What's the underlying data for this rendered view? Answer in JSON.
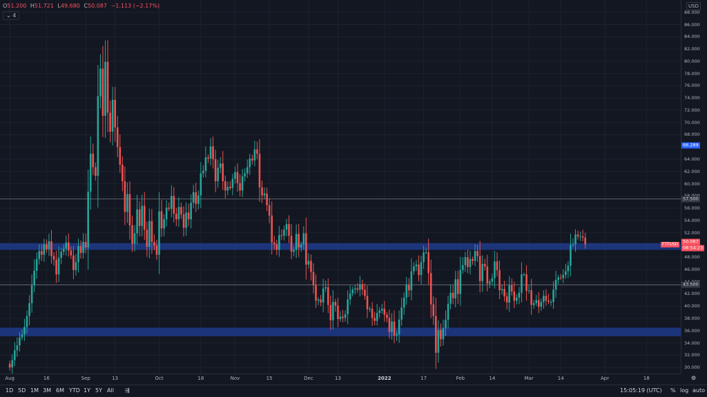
{
  "ohlc": {
    "o_label": "O",
    "o": "51.200",
    "h_label": "H",
    "h": "51.721",
    "l_label": "L",
    "l": "49.680",
    "c_label": "C",
    "c": "50.087",
    "change": "−1.113 (−2.17%)"
  },
  "indicators_toggle": "4",
  "currency": "USD",
  "symbol_label": "FTTUSD",
  "price_badge": {
    "value": "50.087",
    "countdown": "08:54:23",
    "color": "#f7525f"
  },
  "blue_badge": {
    "value": "66.289",
    "color": "#2962ff"
  },
  "hline_badges": [
    "57.500",
    "43.500"
  ],
  "timeframes": [
    "1D",
    "5D",
    "1M",
    "3M",
    "6M",
    "YTD",
    "1Y",
    "5Y",
    "All"
  ],
  "clock": "15:05:19 (UTC)",
  "scale_options": {
    "percent": "%",
    "log": "log",
    "auto": "auto"
  },
  "chart_data": {
    "type": "candlestick",
    "symbol": "FTTUSD",
    "ylim": [
      29,
      90
    ],
    "price_ticks": [
      "88.000",
      "86.000",
      "84.000",
      "82.000",
      "80.000",
      "78.000",
      "76.000",
      "74.000",
      "72.000",
      "70.000",
      "68.000",
      "66.000",
      "64.000",
      "62.000",
      "60.000",
      "58.000",
      "56.000",
      "54.000",
      "52.000",
      "50.000",
      "48.000",
      "46.000",
      "44.000",
      "42.000",
      "40.000",
      "38.000",
      "36.000",
      "34.000",
      "32.000",
      "30.000"
    ],
    "x_labels": [
      {
        "text": "Aug",
        "day": 0
      },
      {
        "text": "16",
        "day": 15
      },
      {
        "text": "Sep",
        "day": 31
      },
      {
        "text": "13",
        "day": 43
      },
      {
        "text": "Oct",
        "day": 61
      },
      {
        "text": "18",
        "day": 78
      },
      {
        "text": "Nov",
        "day": 92
      },
      {
        "text": "15",
        "day": 106
      },
      {
        "text": "Dec",
        "day": 122
      },
      {
        "text": "13",
        "day": 134
      },
      {
        "text": "2022",
        "day": 153,
        "bold": true
      },
      {
        "text": "17",
        "day": 169
      },
      {
        "text": "Feb",
        "day": 184
      },
      {
        "text": "14",
        "day": 197
      },
      {
        "text": "Mar",
        "day": 212
      },
      {
        "text": "14",
        "day": 225
      },
      {
        "text": "Apr",
        "day": 243
      },
      {
        "text": "18",
        "day": 260
      }
    ],
    "x_range_days": [
      -4,
      274
    ],
    "zones": [
      {
        "low": 49.2,
        "high": 50.3,
        "color": "#1e3a8a"
      },
      {
        "low": 35.1,
        "high": 36.5,
        "color": "#1e3a8a"
      }
    ],
    "hlines": [
      57.5,
      43.5
    ],
    "closes": [
      30.0,
      31.2,
      32.8,
      33.6,
      34.9,
      35.4,
      36.6,
      38.4,
      40.5,
      43.4,
      45.8,
      47.7,
      49.0,
      48.4,
      50.1,
      49.3,
      50.6,
      48.2,
      47.6,
      45.2,
      47.9,
      48.9,
      49.4,
      50.4,
      49.1,
      48.3,
      45.9,
      47.2,
      49.8,
      48.7,
      50.5,
      49.6,
      58.7,
      64.9,
      62.7,
      61.3,
      74.3,
      78.8,
      71.1,
      79.9,
      71.6,
      68.5,
      73.7,
      69.2,
      66.0,
      63.1,
      60.4,
      55.4,
      58.3,
      53.2,
      50.2,
      51.9,
      55.8,
      53.1,
      56.4,
      52.5,
      49.7,
      53.9,
      50.5,
      49.9,
      48.4,
      55.5,
      52.7,
      54.2,
      56.1,
      55.9,
      58.0,
      55.1,
      54.2,
      56.2,
      55.0,
      52.8,
      55.3,
      54.2,
      56.9,
      58.6,
      56.7,
      58.1,
      61.7,
      62.1,
      64.3,
      64.1,
      66.1,
      64.0,
      60.4,
      62.6,
      63.3,
      60.4,
      58.9,
      59.5,
      59.3,
      60.8,
      61.9,
      60.1,
      58.9,
      61.2,
      61.7,
      62.7,
      64.1,
      63.8,
      65.6,
      64.9,
      59.4,
      58.1,
      58.4,
      56.5,
      54.8,
      50.4,
      50.1,
      49.2,
      51.6,
      51.5,
      52.5,
      53.4,
      51.5,
      48.9,
      49.2,
      51.8,
      49.6,
      50.1,
      51.9,
      46.8,
      47.4,
      45.6,
      43.4,
      40.9,
      41.1,
      40.6,
      42.9,
      43.1,
      40.2,
      37.7,
      40.7,
      40.1,
      37.9,
      38.3,
      38.1,
      38.7,
      41.1,
      42.1,
      42.7,
      42.9,
      42.7,
      43.6,
      42.7,
      41.7,
      39.5,
      39.6,
      38.1,
      37.6,
      38.9,
      39.3,
      39.6,
      38.6,
      38.1,
      35.8,
      37.5,
      35.2,
      35.4,
      37.8,
      39.8,
      41.4,
      43.5,
      42.6,
      45.7,
      46.5,
      46.8,
      45.1,
      47.2,
      48.8,
      48.8,
      45.4,
      40.3,
      38.4,
      32.4,
      36.1,
      34.6,
      36.4,
      37.8,
      40.4,
      42.2,
      41.3,
      44.4,
      42.0,
      45.9,
      46.7,
      48.0,
      46.4,
      47.7,
      47.4,
      49.0,
      48.2,
      44.1,
      46.9,
      46.5,
      43.7,
      44.0,
      44.6,
      47.3,
      45.9,
      42.6,
      42.8,
      41.6,
      40.6,
      43.4,
      42.4,
      40.9,
      41.4,
      42.2,
      45.2,
      45.2,
      42.5,
      42.6,
      40.2,
      40.5,
      41.0,
      39.9,
      40.7,
      41.7,
      40.9,
      40.7,
      40.7,
      42.7,
      44.3,
      44.7,
      44.6,
      45.1,
      45.7,
      46.6,
      50.0,
      50.1,
      51.7,
      51.4,
      51.4,
      51.2,
      50.1
    ]
  }
}
